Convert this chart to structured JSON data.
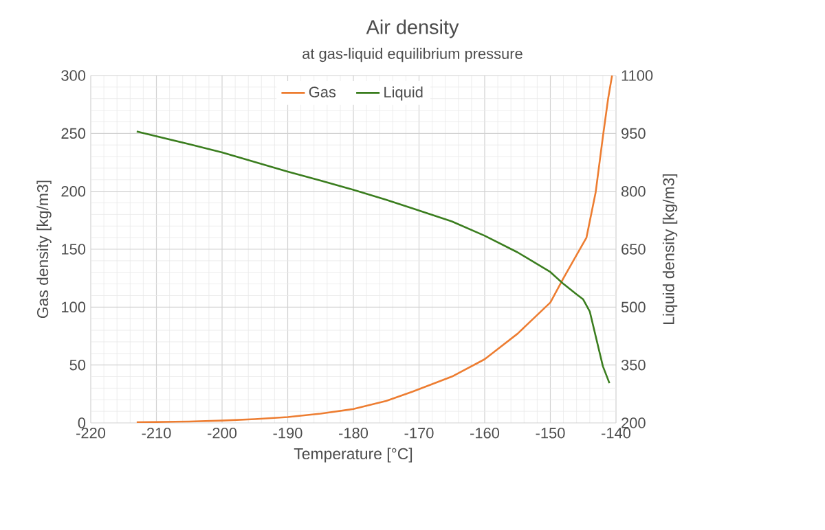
{
  "chart_data": {
    "type": "line",
    "title": "Air density",
    "subtitle": "at gas-liquid equilibrium pressure",
    "xlabel": "Temperature [°C]",
    "ylabel": "Gas density  [kg/m3]",
    "y2label": "Liquid density  [kg/m3]",
    "xlim": [
      -220,
      -140
    ],
    "xticks": [
      -220,
      -210,
      -200,
      -190,
      -180,
      -170,
      -160,
      -150,
      -140
    ],
    "ylim": [
      0,
      300
    ],
    "yticks": [
      0,
      50,
      100,
      150,
      200,
      250,
      300
    ],
    "y2lim": [
      200,
      1100
    ],
    "y2ticks": [
      200,
      350,
      500,
      650,
      800,
      950,
      1100
    ],
    "grid": true,
    "legend": "top",
    "series": [
      {
        "name": "Gas",
        "color": "#ed7d31",
        "x": [
          -213,
          -205,
          -200,
          -195,
          -190,
          -185,
          -180,
          -175,
          -171,
          -165,
          -160,
          -155,
          -150,
          -148,
          -146,
          -144.5,
          -143.1,
          -142,
          -141.2,
          -140.6
        ],
        "values": [
          0.5,
          1.2,
          2,
          3.3,
          5,
          8,
          12,
          19,
          27,
          40,
          55,
          77,
          104,
          125,
          145,
          160,
          199,
          247,
          280,
          300
        ]
      },
      {
        "name": "Liquid",
        "color": "#3a7d1e",
        "axis": "y2",
        "x": [
          -213,
          -205,
          -200,
          -195,
          -190,
          -185,
          -180,
          -175,
          -171,
          -165,
          -160,
          -155,
          -150,
          -148,
          -146,
          -145,
          -144,
          -143,
          -142,
          -141
        ],
        "values": [
          955,
          922,
          901,
          876,
          851,
          828,
          804,
          778,
          756,
          722,
          685,
          642,
          591,
          560,
          533,
          520,
          489,
          418,
          347,
          303
        ]
      }
    ]
  }
}
